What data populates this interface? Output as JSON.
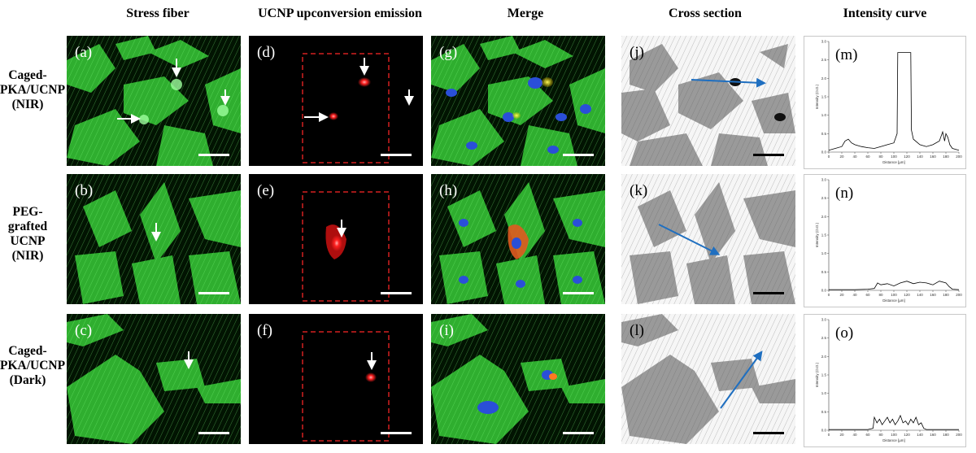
{
  "columns": {
    "stress": "Stress fiber",
    "ucnp": "UCNP upconversion emission",
    "merge": "Merge",
    "cross": "Cross section",
    "intensity": "Intensity curve"
  },
  "rows": [
    {
      "line1": "Caged-",
      "line2": "PKA/UCNP",
      "line3": "(NIR)"
    },
    {
      "line1": "PEG-grafted",
      "line2": "UCNP",
      "line3": "(NIR)"
    },
    {
      "line1": "Caged-",
      "line2": "PKA/UCNP",
      "line3": "(Dark)"
    }
  ],
  "panel_labels": {
    "a": "(a)",
    "b": "(b)",
    "c": "(c)",
    "d": "(d)",
    "e": "(e)",
    "f": "(f)",
    "g": "(g)",
    "h": "(h)",
    "i": "(i)",
    "j": "(j)",
    "k": "(k)",
    "l": "(l)",
    "m": "(m)",
    "n": "(n)",
    "o": "(o)"
  },
  "plot_axes": {
    "ylabel": "Intensity (O.D.)",
    "xlabel": "Distance [µm]",
    "yticks": [
      "0.0",
      "0.5",
      "1.0",
      "1.5",
      "2.0",
      "2.5",
      "3.0"
    ],
    "xticks": [
      "0",
      "20",
      "40",
      "60",
      "80",
      "100",
      "120",
      "140",
      "160",
      "180",
      "200"
    ]
  },
  "colors": {
    "actin": "#3fd13f",
    "nucleus": "#2a4fd8",
    "ucnp": "#ff2020",
    "roi": "#d42020",
    "arrow_cross": "#1f6fc0"
  },
  "chart_data": [
    {
      "type": "line",
      "panel": "(m)",
      "xlabel": "Distance [µm]",
      "ylabel": "Intensity (O.D.)",
      "xlim": [
        0,
        200
      ],
      "ylim": [
        0,
        3.0
      ],
      "x": [
        0,
        10,
        20,
        25,
        30,
        35,
        40,
        50,
        60,
        70,
        80,
        90,
        100,
        105,
        106,
        110,
        120,
        126,
        127,
        130,
        140,
        150,
        160,
        170,
        175,
        178,
        180,
        183,
        186,
        190,
        200
      ],
      "y": [
        0.05,
        0.1,
        0.15,
        0.3,
        0.35,
        0.25,
        0.2,
        0.15,
        0.12,
        0.1,
        0.15,
        0.2,
        0.25,
        0.5,
        2.7,
        2.7,
        2.7,
        2.7,
        0.6,
        0.35,
        0.2,
        0.15,
        0.2,
        0.3,
        0.55,
        0.3,
        0.5,
        0.4,
        0.2,
        0.1,
        0.05
      ]
    },
    {
      "type": "line",
      "panel": "(n)",
      "xlabel": "Distance [µm]",
      "ylabel": "Intensity (O.D.)",
      "xlim": [
        0,
        200
      ],
      "ylim": [
        0,
        3.0
      ],
      "x": [
        0,
        20,
        40,
        60,
        70,
        75,
        80,
        90,
        100,
        110,
        120,
        130,
        140,
        150,
        160,
        170,
        180,
        185,
        190,
        200
      ],
      "y": [
        0.02,
        0.02,
        0.02,
        0.03,
        0.05,
        0.2,
        0.15,
        0.18,
        0.12,
        0.2,
        0.25,
        0.18,
        0.22,
        0.2,
        0.15,
        0.25,
        0.2,
        0.1,
        0.03,
        0.02
      ]
    },
    {
      "type": "line",
      "panel": "(o)",
      "xlabel": "Distance [µm]",
      "ylabel": "Intensity (O.D.)",
      "xlim": [
        0,
        200
      ],
      "ylim": [
        0,
        3.0
      ],
      "x": [
        0,
        20,
        40,
        60,
        68,
        70,
        74,
        78,
        82,
        86,
        90,
        94,
        98,
        102,
        106,
        110,
        114,
        118,
        122,
        126,
        130,
        134,
        138,
        142,
        146,
        150,
        160,
        180,
        200
      ],
      "y": [
        0.02,
        0.02,
        0.02,
        0.02,
        0.05,
        0.35,
        0.2,
        0.3,
        0.15,
        0.25,
        0.35,
        0.2,
        0.3,
        0.15,
        0.25,
        0.4,
        0.2,
        0.25,
        0.15,
        0.3,
        0.2,
        0.35,
        0.15,
        0.2,
        0.05,
        0.02,
        0.02,
        0.02,
        0.02
      ]
    }
  ]
}
